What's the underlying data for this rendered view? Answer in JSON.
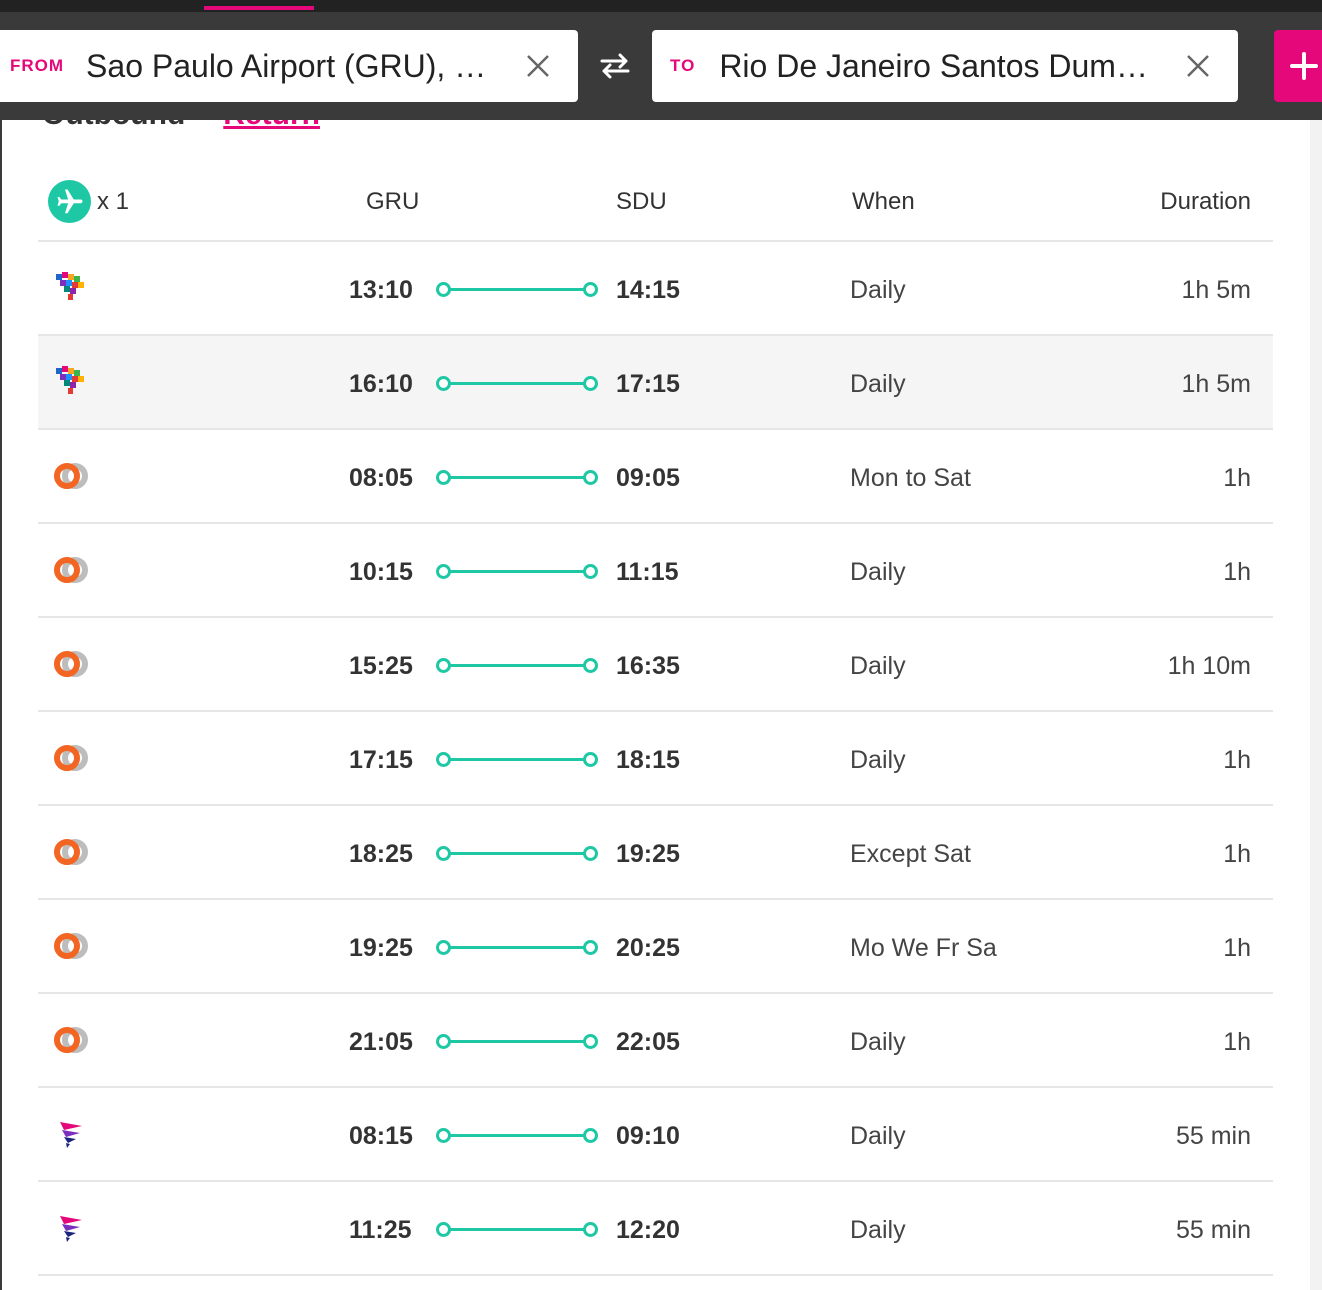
{
  "search": {
    "from_label": "FROM",
    "from_value": "Sao Paulo Airport (GRU), Brazil",
    "to_label": "TO",
    "to_value": "Rio De Janeiro Santos Dumont",
    "swap_icon": "swap-arrows-icon",
    "add_icon": "plus-icon"
  },
  "section": {
    "outbound": "Outbound",
    "separator": "·",
    "return": "Return"
  },
  "table": {
    "pax_count": "x 1",
    "col_origin": "GRU",
    "col_destination": "SDU",
    "col_when": "When",
    "col_duration": "Duration"
  },
  "flights": [
    {
      "airline": "azul",
      "dep": "13:10",
      "arr": "14:15",
      "when": "Daily",
      "dur": "1h 5m"
    },
    {
      "airline": "azul",
      "dep": "16:10",
      "arr": "17:15",
      "when": "Daily",
      "dur": "1h 5m"
    },
    {
      "airline": "avianca",
      "dep": "08:05",
      "arr": "09:05",
      "when": "Mon to Sat",
      "dur": "1h"
    },
    {
      "airline": "avianca",
      "dep": "10:15",
      "arr": "11:15",
      "when": "Daily",
      "dur": "1h"
    },
    {
      "airline": "avianca",
      "dep": "15:25",
      "arr": "16:35",
      "when": "Daily",
      "dur": "1h 10m"
    },
    {
      "airline": "avianca",
      "dep": "17:15",
      "arr": "18:15",
      "when": "Daily",
      "dur": "1h"
    },
    {
      "airline": "avianca",
      "dep": "18:25",
      "arr": "19:25",
      "when": "Except Sat",
      "dur": "1h"
    },
    {
      "airline": "avianca",
      "dep": "19:25",
      "arr": "20:25",
      "when": "Mo We Fr Sa",
      "dur": "1h"
    },
    {
      "airline": "avianca",
      "dep": "21:05",
      "arr": "22:05",
      "when": "Daily",
      "dur": "1h"
    },
    {
      "airline": "latam",
      "dep": "08:15",
      "arr": "09:10",
      "when": "Daily",
      "dur": "55 min"
    },
    {
      "airline": "latam",
      "dep": "11:25",
      "arr": "12:20",
      "when": "Daily",
      "dur": "55 min"
    }
  ],
  "colors": {
    "accent": "#e5087a",
    "teal": "#1ec8a5",
    "header_bg": "#3a3a3a"
  }
}
